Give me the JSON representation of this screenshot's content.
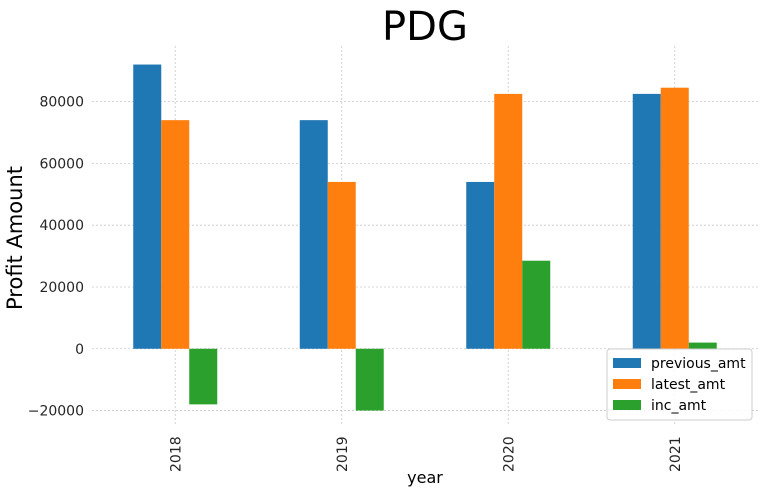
{
  "chart_data": {
    "type": "bar",
    "title": "PDG",
    "xlabel": "year",
    "ylabel": "Profit Amount",
    "categories": [
      "2018",
      "2019",
      "2020",
      "2021"
    ],
    "series": [
      {
        "name": "previous_amt",
        "color": "#1f77b4",
        "values": [
          92000,
          74000,
          54000,
          82500
        ]
      },
      {
        "name": "latest_amt",
        "color": "#ff7f0e",
        "values": [
          74000,
          54000,
          82500,
          84500
        ]
      },
      {
        "name": "inc_amt",
        "color": "#2ca02c",
        "values": [
          -18000,
          -20000,
          28500,
          2000
        ]
      }
    ],
    "ylim": [
      -25000,
      98000
    ],
    "yticks": [
      -20000,
      0,
      20000,
      40000,
      60000,
      80000
    ],
    "ytick_labels": [
      "−20000",
      "0",
      "20000",
      "40000",
      "60000",
      "80000"
    ],
    "grid": true,
    "legend_position": "lower-right"
  }
}
